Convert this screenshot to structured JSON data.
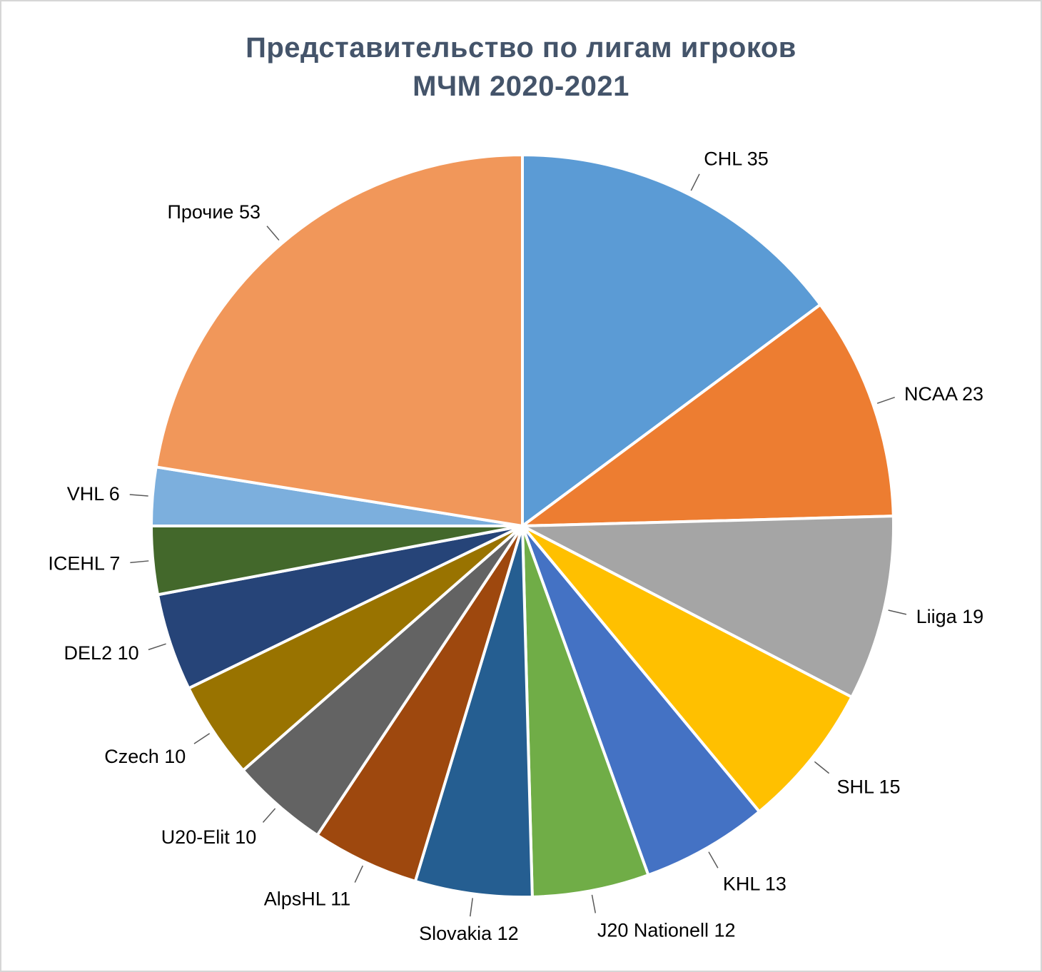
{
  "title": {
    "line1": "Представительство по лигам игроков",
    "line2": "МЧМ 2020-2021",
    "color": "#44546A"
  },
  "chart_data": {
    "type": "pie",
    "title": "Представительство по лигам игроков МЧМ 2020-2021",
    "start_angle_deg": 0,
    "direction": "clockwise",
    "legend": "none",
    "label_style": "outside-with-leader-lines",
    "label_format": "{label} {value}",
    "label_color": "#000000",
    "leader_line_color": "#595959",
    "slice_gap_color": "#FFFFFF",
    "slices": [
      {
        "label": "CHL",
        "value": 35,
        "color": "#5B9BD5"
      },
      {
        "label": "NCAA",
        "value": 23,
        "color": "#ED7D31"
      },
      {
        "label": "Liiga",
        "value": 19,
        "color": "#A5A5A5"
      },
      {
        "label": "SHL",
        "value": 15,
        "color": "#FFC000"
      },
      {
        "label": "KHL",
        "value": 13,
        "color": "#4472C4"
      },
      {
        "label": "J20 Nationell",
        "value": 12,
        "color": "#70AD47"
      },
      {
        "label": "Slovakia",
        "value": 12,
        "color": "#255E91"
      },
      {
        "label": "AlpsHL",
        "value": 11,
        "color": "#9E480E"
      },
      {
        "label": "U20-Elit",
        "value": 10,
        "color": "#636363"
      },
      {
        "label": "Czech",
        "value": 10,
        "color": "#997300"
      },
      {
        "label": "DEL2",
        "value": 10,
        "color": "#264478"
      },
      {
        "label": "ICEHL",
        "value": 7,
        "color": "#43682B"
      },
      {
        "label": "VHL",
        "value": 6,
        "color": "#7CAFDD"
      },
      {
        "label": "Прочие",
        "value": 53,
        "color": "#F1975A"
      }
    ]
  }
}
